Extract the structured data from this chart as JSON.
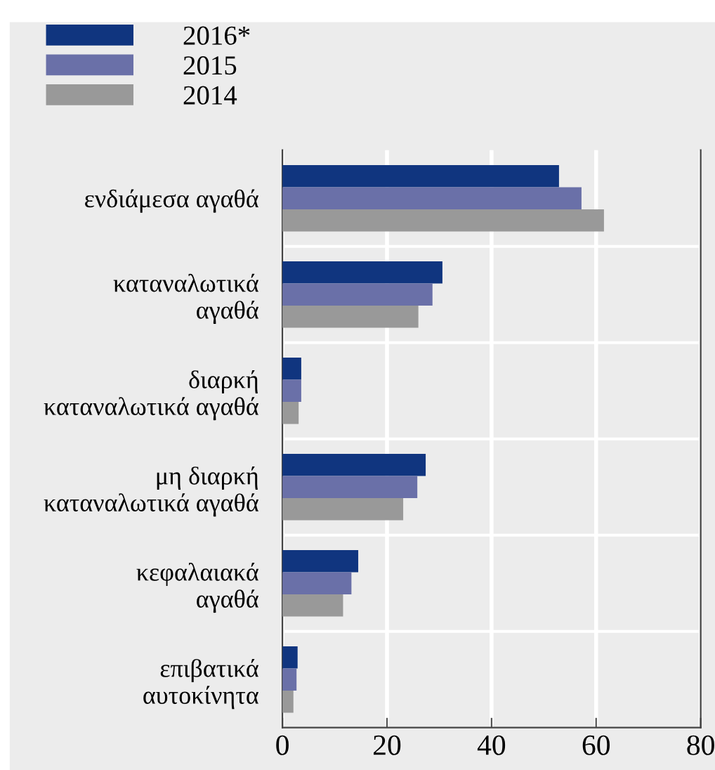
{
  "chart_data": {
    "type": "bar",
    "orientation": "horizontal",
    "categories": [
      "ενδιάμεσα αγαθά",
      "καταναλωτικά\nαγαθά",
      "διαρκή\nκαταναλωτικά αγαθά",
      "μη διαρκή\nκαταναλωτικά αγαθά",
      "κεφαλαιακά\nαγαθά",
      "επιβατικά\nαυτοκίνητα"
    ],
    "series": [
      {
        "name": "2016*",
        "color": "#10357f",
        "values": [
          52.9,
          30.6,
          3.6,
          27.4,
          14.5,
          2.9
        ]
      },
      {
        "name": "2015",
        "color": "#6a70a8",
        "values": [
          57.2,
          28.7,
          3.6,
          25.8,
          13.2,
          2.7
        ]
      },
      {
        "name": "2014",
        "color": "#999999",
        "values": [
          61.5,
          26.0,
          3.1,
          23.1,
          11.6,
          2.1
        ]
      }
    ],
    "xlim": [
      0,
      80
    ],
    "xticks": [
      0,
      20,
      40,
      60,
      80
    ],
    "grid": true,
    "legend": "top left"
  }
}
